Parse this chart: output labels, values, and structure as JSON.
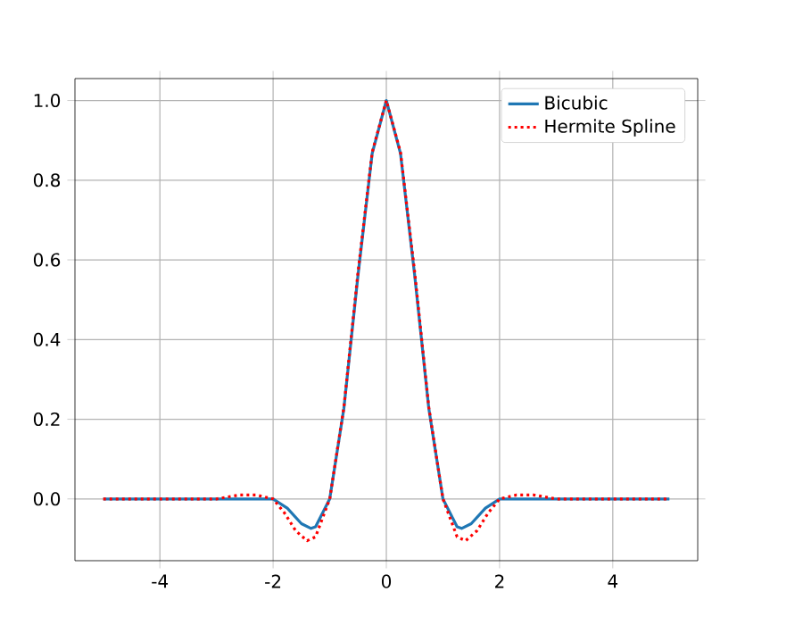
{
  "chart_data": {
    "type": "line",
    "xlim": [
      -5.5,
      5.5
    ],
    "ylim": [
      -0.155,
      1.055
    ],
    "xticks": [
      -4,
      -2,
      0,
      2,
      4
    ],
    "yticks": [
      {
        "value": 0,
        "label": "0.0"
      },
      {
        "value": 0.2,
        "label": "0.2"
      },
      {
        "value": 0.4,
        "label": "0.4"
      },
      {
        "value": 0.6,
        "label": "0.6"
      },
      {
        "value": 0.8,
        "label": "0.8"
      },
      {
        "value": 1,
        "label": "1.0"
      }
    ],
    "grid": true,
    "legend": "top right",
    "series": [
      {
        "name": "Bicubic",
        "color": "#1f77b4",
        "line_style": "solid",
        "x": [
          -5,
          -2,
          -1.75,
          -1.5,
          -1.33,
          -1.25,
          -1,
          -0.75,
          -0.5,
          -0.25,
          0,
          0.25,
          0.5,
          0.75,
          1,
          1.25,
          1.33,
          1.5,
          1.75,
          2,
          5
        ],
        "values": [
          0,
          0,
          -0.023,
          -0.062,
          -0.074,
          -0.07,
          0,
          0.227,
          0.562,
          0.867,
          1,
          0.867,
          0.562,
          0.227,
          0,
          -0.07,
          -0.074,
          -0.062,
          -0.023,
          0,
          0
        ]
      },
      {
        "name": "Hermite Spline",
        "color": "#ff0000",
        "line_style": "dotted",
        "x": [
          -5,
          -3,
          -2.6,
          -2.3,
          -2,
          -1.8,
          -1.6,
          -1.4,
          -1.25,
          -1,
          -0.75,
          -0.5,
          -0.25,
          0,
          0.25,
          0.5,
          0.75,
          1,
          1.25,
          1.4,
          1.6,
          1.8,
          2,
          2.3,
          2.6,
          3,
          5
        ],
        "values": [
          0,
          0,
          0.01,
          0.01,
          0,
          -0.035,
          -0.08,
          -0.105,
          -0.095,
          0,
          0.23,
          0.57,
          0.87,
          1,
          0.87,
          0.57,
          0.23,
          0,
          -0.095,
          -0.105,
          -0.08,
          -0.035,
          0,
          0.01,
          0.01,
          0,
          0
        ]
      }
    ]
  }
}
